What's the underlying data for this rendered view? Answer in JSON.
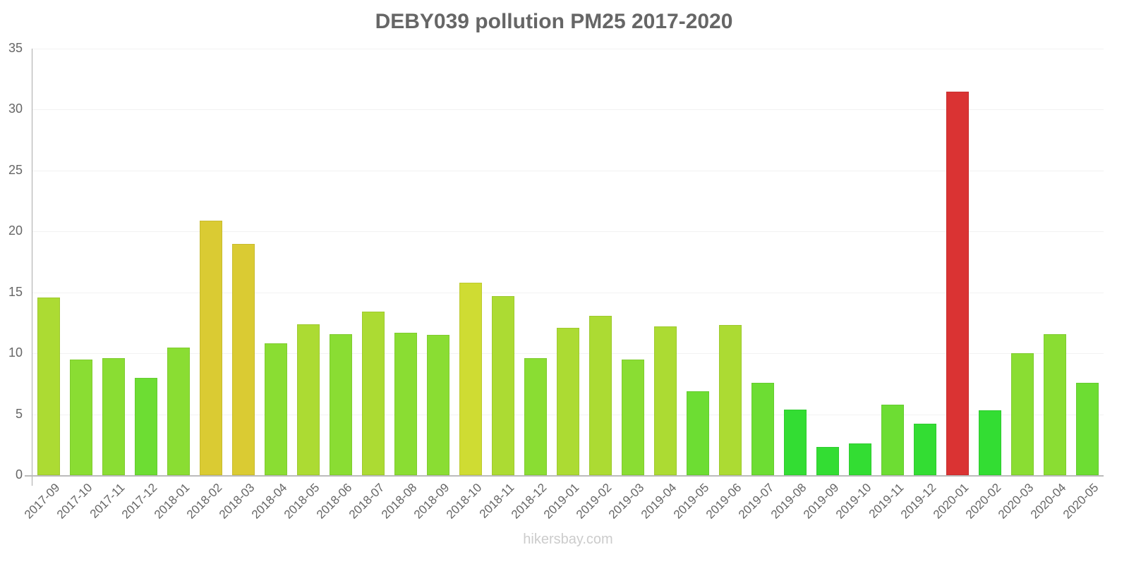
{
  "chart_data": {
    "type": "bar",
    "title": "DEBY039 pollution PM25 2017-2020",
    "xlabel": "",
    "ylabel": "",
    "ylim": [
      0,
      35
    ],
    "yticks": [
      0,
      5,
      10,
      15,
      20,
      25,
      30,
      35
    ],
    "grid": true,
    "legend": "none",
    "categories": [
      "2017-09",
      "2017-10",
      "2017-11",
      "2017-12",
      "2018-01",
      "2018-02",
      "2018-03",
      "2018-04",
      "2018-05",
      "2018-06",
      "2018-07",
      "2018-08",
      "2018-09",
      "2018-10",
      "2018-11",
      "2018-12",
      "2019-01",
      "2019-02",
      "2019-03",
      "2019-04",
      "2019-05",
      "2019-06",
      "2019-07",
      "2019-08",
      "2019-09",
      "2019-10",
      "2019-11",
      "2019-12",
      "2020-01",
      "2020-02",
      "2020-03",
      "2020-04",
      "2020-05"
    ],
    "values": [
      14.6,
      9.5,
      9.6,
      8.0,
      10.5,
      20.9,
      19.0,
      10.8,
      12.4,
      11.6,
      13.4,
      11.7,
      11.5,
      15.8,
      14.7,
      9.6,
      12.1,
      13.1,
      9.5,
      12.2,
      6.9,
      12.3,
      7.6,
      5.4,
      2.3,
      2.6,
      5.8,
      4.2,
      31.5,
      5.3,
      10.0,
      11.6,
      7.6
    ],
    "colors": [
      "#acdb33",
      "#8add33",
      "#8add33",
      "#6ddd33",
      "#8add33",
      "#dacb33",
      "#dacb33",
      "#8add33",
      "#acdb33",
      "#8add33",
      "#acdb33",
      "#8add33",
      "#8add33",
      "#cfdc33",
      "#acdb33",
      "#8add33",
      "#acdb33",
      "#acdb33",
      "#8add33",
      "#acdb33",
      "#6ddd33",
      "#acdb33",
      "#6ddd33",
      "#33dd33",
      "#33dd33",
      "#33dd33",
      "#6ddd33",
      "#33dd33",
      "#da3333",
      "#33dd33",
      "#8add33",
      "#8add33",
      "#6ddd33"
    ]
  },
  "watermark": "hikersbay.com"
}
